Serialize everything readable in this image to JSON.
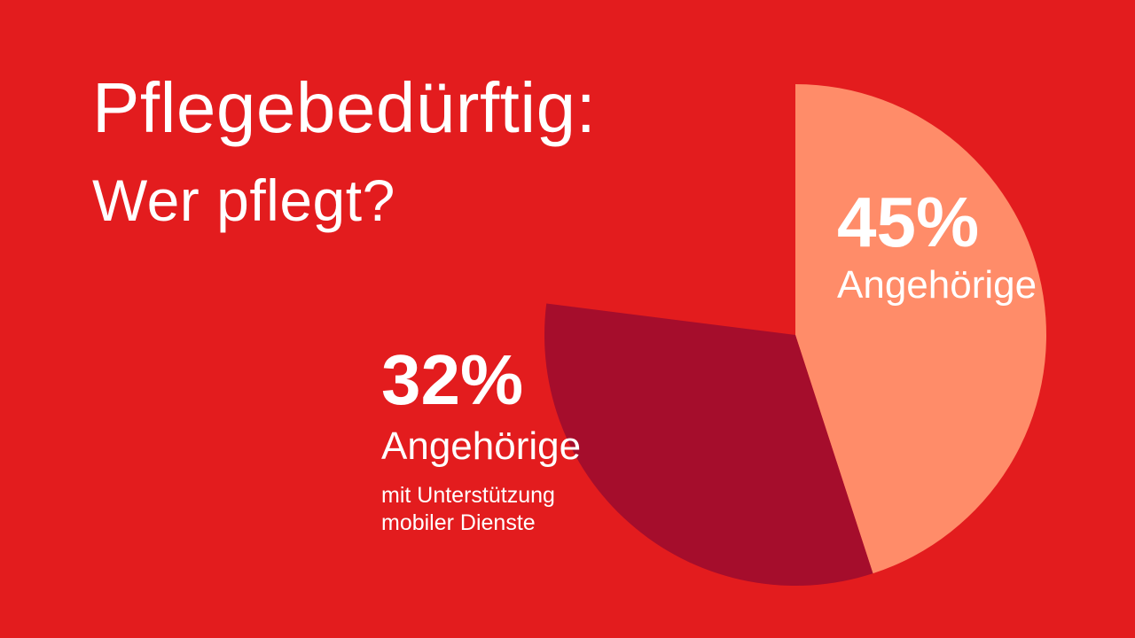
{
  "colors": {
    "background": "#e31c1e",
    "slice_family": "#ff8c69",
    "slice_family_mobile": "#a50d2c",
    "text": "#ffffff"
  },
  "title": {
    "line1": "Pflegebedürftig:",
    "line2": "Wer pflegt?"
  },
  "chart_data": {
    "type": "pie",
    "slices": [
      {
        "percent_label": "45%",
        "label": "Angehörige",
        "sublabel_lines": [],
        "value": 45,
        "color": "#ff8c69"
      },
      {
        "percent_label": "32%",
        "label": "Angehörige",
        "sublabel_lines": [
          "mit Unterstützung",
          "mobiler Dienste"
        ],
        "value": 32,
        "color": "#a50d2c"
      }
    ],
    "total": 100,
    "start_angle": "12 o'clock",
    "direction": "clockwise",
    "legend": "none"
  }
}
